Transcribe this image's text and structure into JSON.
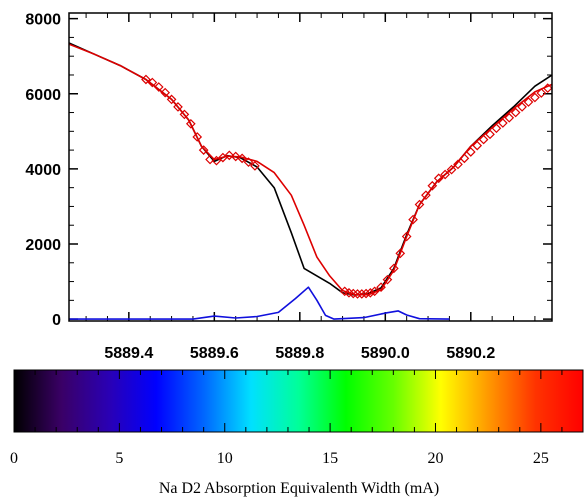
{
  "chart_data": [
    {
      "type": "line",
      "title": "",
      "xlabel": "",
      "ylabel": "",
      "xlim": [
        5889.26,
        5890.39
      ],
      "ylim": [
        -50,
        8150
      ],
      "x_ticks": [
        5889.4,
        5889.6,
        5889.8,
        5890.0,
        5890.2
      ],
      "x_tick_labels": [
        "5889.4",
        "5889.6",
        "5889.8",
        "5890.0",
        "5890.2"
      ],
      "y_ticks": [
        0,
        2000,
        4000,
        6000,
        8000
      ],
      "y_tick_labels": [
        "0",
        "2000",
        "4000",
        "6000",
        "8000"
      ],
      "series": [
        {
          "color": "#000000",
          "points": [
            [
              5889.26,
              7350
            ],
            [
              5889.32,
              7050
            ],
            [
              5889.38,
              6750
            ],
            [
              5889.44,
              6380
            ],
            [
              5889.5,
              5850
            ],
            [
              5889.54,
              5300
            ],
            [
              5889.57,
              4600
            ],
            [
              5889.6,
              4200
            ],
            [
              5889.63,
              4350
            ],
            [
              5889.66,
              4300
            ],
            [
              5889.7,
              4050
            ],
            [
              5889.74,
              3500
            ],
            [
              5889.78,
              2300
            ],
            [
              5889.81,
              1350
            ],
            [
              5889.84,
              1150
            ],
            [
              5889.87,
              950
            ],
            [
              5889.9,
              700
            ],
            [
              5889.93,
              640
            ],
            [
              5889.96,
              680
            ],
            [
              5889.99,
              830
            ],
            [
              5890.02,
              1350
            ],
            [
              5890.05,
              2250
            ],
            [
              5890.08,
              3050
            ],
            [
              5890.12,
              3650
            ],
            [
              5890.16,
              4050
            ],
            [
              5890.2,
              4600
            ],
            [
              5890.25,
              5150
            ],
            [
              5890.3,
              5650
            ],
            [
              5890.35,
              6200
            ],
            [
              5890.39,
              6500
            ]
          ]
        },
        {
          "color": "#dd0000",
          "points": [
            [
              5889.26,
              7320
            ],
            [
              5889.32,
              7050
            ],
            [
              5889.38,
              6750
            ],
            [
              5889.44,
              6380
            ],
            [
              5889.5,
              5850
            ],
            [
              5889.54,
              5300
            ],
            [
              5889.57,
              4600
            ],
            [
              5889.6,
              4250
            ],
            [
              5889.63,
              4340
            ],
            [
              5889.66,
              4320
            ],
            [
              5889.7,
              4200
            ],
            [
              5889.74,
              3900
            ],
            [
              5889.78,
              3300
            ],
            [
              5889.81,
              2500
            ],
            [
              5889.84,
              1650
            ],
            [
              5889.87,
              1150
            ],
            [
              5889.9,
              760
            ],
            [
              5889.93,
              650
            ],
            [
              5889.96,
              650
            ],
            [
              5889.99,
              780
            ],
            [
              5890.02,
              1300
            ],
            [
              5890.05,
              2200
            ],
            [
              5890.08,
              3050
            ],
            [
              5890.12,
              3650
            ],
            [
              5890.16,
              4050
            ],
            [
              5890.2,
              4600
            ],
            [
              5890.25,
              5100
            ],
            [
              5890.3,
              5600
            ],
            [
              5890.35,
              6050
            ],
            [
              5890.39,
              6250
            ]
          ]
        },
        {
          "color": "#1010dd",
          "points": [
            [
              5889.26,
              0
            ],
            [
              5889.5,
              0
            ],
            [
              5889.55,
              0
            ],
            [
              5889.6,
              80
            ],
            [
              5889.65,
              30
            ],
            [
              5889.7,
              70
            ],
            [
              5889.75,
              180
            ],
            [
              5889.79,
              550
            ],
            [
              5889.82,
              850
            ],
            [
              5889.84,
              500
            ],
            [
              5889.86,
              100
            ],
            [
              5889.88,
              0
            ],
            [
              5889.95,
              40
            ],
            [
              5890.0,
              160
            ],
            [
              5890.03,
              220
            ],
            [
              5890.05,
              110
            ],
            [
              5890.08,
              10
            ],
            [
              5890.15,
              0
            ]
          ]
        },
        {
          "color": "#dd0000",
          "marker": "diamond",
          "points": [
            [
              5889.44,
              6380
            ],
            [
              5889.455,
              6300
            ],
            [
              5889.47,
              6180
            ],
            [
              5889.485,
              6030
            ],
            [
              5889.5,
              5850
            ],
            [
              5889.515,
              5650
            ],
            [
              5889.53,
              5450
            ],
            [
              5889.545,
              5200
            ],
            [
              5889.56,
              4850
            ],
            [
              5889.575,
              4500
            ],
            [
              5889.59,
              4250
            ],
            [
              5889.605,
              4220
            ],
            [
              5889.62,
              4300
            ],
            [
              5889.635,
              4360
            ],
            [
              5889.65,
              4330
            ],
            [
              5889.665,
              4280
            ],
            [
              5889.68,
              4180
            ],
            [
              5889.695,
              4080
            ],
            [
              5889.905,
              740
            ],
            [
              5889.915,
              700
            ],
            [
              5889.925,
              680
            ],
            [
              5889.935,
              670
            ],
            [
              5889.945,
              670
            ],
            [
              5889.955,
              680
            ],
            [
              5889.965,
              700
            ],
            [
              5889.975,
              740
            ],
            [
              5889.99,
              850
            ],
            [
              5890.005,
              1050
            ],
            [
              5890.02,
              1350
            ],
            [
              5890.035,
              1750
            ],
            [
              5890.05,
              2200
            ],
            [
              5890.065,
              2650
            ],
            [
              5890.08,
              3050
            ],
            [
              5890.095,
              3300
            ],
            [
              5890.11,
              3550
            ],
            [
              5890.125,
              3750
            ],
            [
              5890.14,
              3850
            ],
            [
              5890.155,
              3980
            ],
            [
              5890.17,
              4120
            ],
            [
              5890.185,
              4280
            ],
            [
              5890.2,
              4450
            ],
            [
              5890.215,
              4620
            ],
            [
              5890.23,
              4780
            ],
            [
              5890.245,
              4920
            ],
            [
              5890.26,
              5080
            ],
            [
              5890.275,
              5220
            ],
            [
              5890.29,
              5360
            ],
            [
              5890.305,
              5500
            ],
            [
              5890.32,
              5650
            ],
            [
              5890.335,
              5780
            ],
            [
              5890.35,
              5900
            ],
            [
              5890.365,
              6020
            ],
            [
              5890.38,
              6150
            ]
          ]
        }
      ]
    },
    {
      "type": "heatmap",
      "title": "Na D2 Absorption Equivalenth Width (mA)",
      "xlim": [
        0,
        27
      ],
      "ticks": [
        0,
        5,
        10,
        15,
        20,
        25
      ],
      "tick_labels": [
        "0",
        "5",
        "10",
        "15",
        "20",
        "25"
      ],
      "colormap": [
        "#000000",
        "#3a0066",
        "#2a00b4",
        "#0000ff",
        "#0066ff",
        "#00e0ff",
        "#00ff99",
        "#00ff00",
        "#66ff00",
        "#ffff00",
        "#ff9900",
        "#ff3300",
        "#ff0000"
      ]
    }
  ]
}
